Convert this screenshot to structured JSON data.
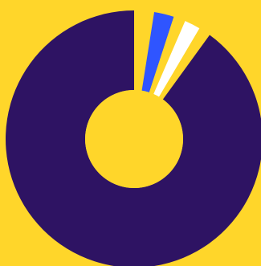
{
  "chart_data": {
    "type": "pie",
    "variant": "donut",
    "background_color": "#FFD62A",
    "slices": [
      {
        "value": 2.5,
        "color": "#FFD62A"
      },
      {
        "value": 2.5,
        "color": "#2F55FF"
      },
      {
        "value": 1.5,
        "color": "#FFD62A"
      },
      {
        "value": 2.0,
        "color": "#FFFFFF"
      },
      {
        "value": 1.5,
        "color": "#FFD62A"
      },
      {
        "value": 90.0,
        "color": "#2E1363"
      }
    ]
  }
}
